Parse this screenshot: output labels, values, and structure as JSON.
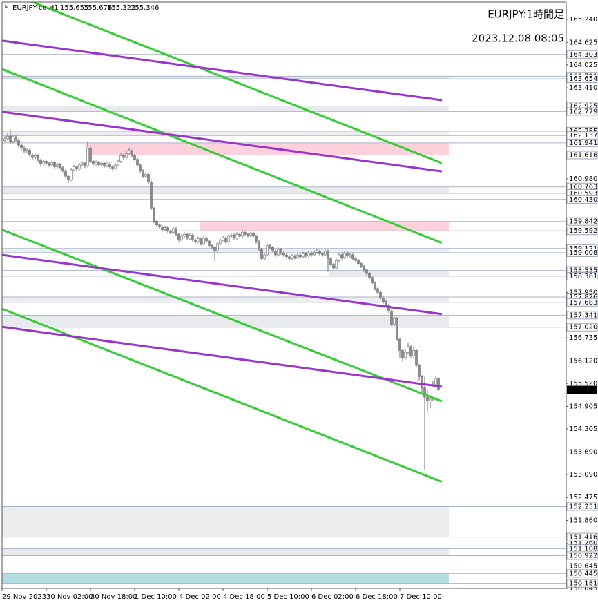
{
  "chart_data": {
    "type": "candlestick",
    "symbol": "EURJPY-cd,H1",
    "title": "EURJPY:1時間足",
    "timestamp": "2023.12.08 08:05",
    "ylim": [
      150.045,
      165.7
    ],
    "yticks": [
      {
        "value": 165.24,
        "label": "165.240"
      },
      164.625,
      164.025,
      {
        "value": 163.41,
        "label": "163.410"
      },
      {
        "value": 160.98,
        "label": "160.980"
      },
      {
        "value": 157.95,
        "label": "157.950"
      },
      156.735,
      {
        "value": 156.12,
        "label": "156.120"
      },
      {
        "value": 155.52,
        "label": "155.520"
      },
      154.905,
      154.305,
      {
        "value": 153.69,
        "label": "153.690"
      },
      {
        "value": 153.09,
        "label": "153.090"
      },
      152.475,
      {
        "value": 151.86,
        "label": "151.860"
      },
      {
        "value": 151.26,
        "label": "151.260"
      },
      150.645,
      150.045
    ],
    "grid": false,
    "up_color": "#ffffff",
    "down_color": "#8a8a8a",
    "wick_color": "#6e6e6e",
    "price_box_color": "#000000",
    "categories": [
      "29 Nov 2023",
      null,
      null,
      null,
      null,
      null,
      null,
      null,
      null,
      null,
      null,
      null,
      null,
      null,
      null,
      null,
      "30 Nov 02:00",
      null,
      null,
      null,
      null,
      null,
      null,
      null,
      null,
      null,
      null,
      null,
      null,
      null,
      null,
      null,
      "30 Nov 18:00",
      null,
      null,
      null,
      null,
      null,
      null,
      null,
      null,
      null,
      null,
      null,
      null,
      null,
      null,
      null,
      "1 Dec 10:00",
      null,
      null,
      null,
      null,
      null,
      null,
      null,
      null,
      null,
      null,
      null,
      null,
      null,
      null,
      null,
      "4 Dec 02:00",
      null,
      null,
      null,
      null,
      null,
      null,
      null,
      null,
      null,
      null,
      null,
      null,
      null,
      null,
      null,
      "4 Dec 18:00",
      null,
      null,
      null,
      null,
      null,
      null,
      null,
      null,
      null,
      null,
      null,
      null,
      null,
      null,
      null,
      "5 Dec 10:00",
      null,
      null,
      null,
      null,
      null,
      null,
      null,
      null,
      null,
      null,
      null,
      null,
      null,
      null,
      null,
      "6 Dec 02:00",
      null,
      null,
      null,
      null,
      null,
      null,
      null,
      null,
      null,
      null,
      null,
      null,
      null,
      null,
      null,
      "6 Dec 18:00",
      null,
      null,
      null,
      null,
      null,
      null,
      null,
      null,
      null,
      null,
      null,
      null,
      null,
      null,
      null,
      "7 Dec 10:00",
      null,
      null,
      null,
      null,
      null,
      null,
      null,
      null,
      null,
      null,
      null,
      null,
      null
    ],
    "candles": {
      "open": [
        162.0,
        162.05,
        162.12,
        161.98,
        162.1,
        162.02,
        161.88,
        161.8,
        161.72,
        161.75,
        161.62,
        161.55,
        161.6,
        161.48,
        161.38,
        161.45,
        161.4,
        161.35,
        161.42,
        161.3,
        161.36,
        161.28,
        161.2,
        161.05,
        160.95,
        161.22,
        161.3,
        161.25,
        161.35,
        161.4,
        161.32,
        161.8,
        161.45,
        161.38,
        161.42,
        161.36,
        161.4,
        161.33,
        161.38,
        161.3,
        161.25,
        161.35,
        161.45,
        161.6,
        161.55,
        161.65,
        161.72,
        161.6,
        161.5,
        161.35,
        161.2,
        161.05,
        161.1,
        160.9,
        160.2,
        159.85,
        159.75,
        159.7,
        159.62,
        159.68,
        159.58,
        159.55,
        159.65,
        159.5,
        159.35,
        159.45,
        159.5,
        159.4,
        159.48,
        159.35,
        159.3,
        159.38,
        159.25,
        159.4,
        159.32,
        159.2,
        159.15,
        159.05,
        159.25,
        159.35,
        159.4,
        159.3,
        159.45,
        159.48,
        159.4,
        159.5,
        159.45,
        159.55,
        159.5,
        159.47,
        159.52,
        159.45,
        159.3,
        159.1,
        158.85,
        158.95,
        159.2,
        159.15,
        159.05,
        158.95,
        159.1,
        159.0,
        158.95,
        158.9,
        158.85,
        158.92,
        158.88,
        158.95,
        158.9,
        158.98,
        158.93,
        159.0,
        158.95,
        159.02,
        159.05,
        158.98,
        158.95,
        159.05,
        158.85,
        158.7,
        158.6,
        158.8,
        158.95,
        158.88,
        159.0,
        158.92,
        158.95,
        158.85,
        158.8,
        158.72,
        158.65,
        158.55,
        158.45,
        158.35,
        158.2,
        158.05,
        157.95,
        157.8,
        157.7,
        157.6,
        157.45,
        157.1,
        157.25,
        156.7,
        156.4,
        156.2,
        156.35,
        156.5,
        156.25,
        156.4,
        156.0,
        155.7,
        155.4,
        155.15,
        155.05,
        155.1,
        155.5,
        155.655
      ],
      "high": [
        162.12,
        162.2,
        162.29,
        162.16,
        162.15,
        162.06,
        161.93,
        161.85,
        161.8,
        161.79,
        161.66,
        161.65,
        161.64,
        161.52,
        161.5,
        161.49,
        161.44,
        161.47,
        161.46,
        161.41,
        161.4,
        161.32,
        161.24,
        161.09,
        161.27,
        161.35,
        161.34,
        161.4,
        161.45,
        161.44,
        161.98,
        161.84,
        161.49,
        161.47,
        161.46,
        161.45,
        161.44,
        161.43,
        161.42,
        161.34,
        161.4,
        161.5,
        161.66,
        161.65,
        161.72,
        161.8,
        161.76,
        161.64,
        161.54,
        161.39,
        161.24,
        161.15,
        161.14,
        160.94,
        160.24,
        159.89,
        159.79,
        159.74,
        159.73,
        159.72,
        159.62,
        159.7,
        159.69,
        159.54,
        159.5,
        159.55,
        159.54,
        159.53,
        159.52,
        159.39,
        159.43,
        159.42,
        159.45,
        159.44,
        159.36,
        159.24,
        159.19,
        159.3,
        159.4,
        159.45,
        159.44,
        159.5,
        159.53,
        159.52,
        159.55,
        159.54,
        159.62,
        159.59,
        159.54,
        159.57,
        159.56,
        159.49,
        159.34,
        159.14,
        159.0,
        159.25,
        159.24,
        159.19,
        159.09,
        159.15,
        159.14,
        159.04,
        158.99,
        158.94,
        158.97,
        158.96,
        159.0,
        158.99,
        159.03,
        159.02,
        159.05,
        159.04,
        159.07,
        159.1,
        159.09,
        159.02,
        159.1,
        159.09,
        158.89,
        158.74,
        158.85,
        159.0,
        158.99,
        159.05,
        159.04,
        159.0,
        158.99,
        158.89,
        158.84,
        158.76,
        158.69,
        158.59,
        158.49,
        158.39,
        158.24,
        158.09,
        157.99,
        157.84,
        157.74,
        157.64,
        157.49,
        157.3,
        157.29,
        156.74,
        156.44,
        156.45,
        156.6,
        156.54,
        156.5,
        156.44,
        156.04,
        155.74,
        155.7,
        155.35,
        155.2,
        155.6,
        155.72,
        155.676
      ],
      "low": [
        161.95,
        162.0,
        161.92,
        161.93,
        161.96,
        161.82,
        161.74,
        161.66,
        161.67,
        161.57,
        161.49,
        161.5,
        161.43,
        161.32,
        161.34,
        161.35,
        161.3,
        161.31,
        161.25,
        161.26,
        161.23,
        161.15,
        161.0,
        160.87,
        160.92,
        161.18,
        161.2,
        161.21,
        161.31,
        161.27,
        161.28,
        161.4,
        161.33,
        161.34,
        161.31,
        161.32,
        161.28,
        161.29,
        161.25,
        161.2,
        161.21,
        161.31,
        161.41,
        161.5,
        161.51,
        161.61,
        161.55,
        161.45,
        161.3,
        161.15,
        161.0,
        161.01,
        160.85,
        160.15,
        159.8,
        159.7,
        159.65,
        159.57,
        159.58,
        159.53,
        159.5,
        159.51,
        159.45,
        159.3,
        159.31,
        159.41,
        159.35,
        159.36,
        159.3,
        159.25,
        159.26,
        159.2,
        159.21,
        159.27,
        159.15,
        159.1,
        158.79,
        159.01,
        159.21,
        159.31,
        159.25,
        159.26,
        159.41,
        159.35,
        159.36,
        159.4,
        159.41,
        159.45,
        159.42,
        159.43,
        159.4,
        159.25,
        159.05,
        158.8,
        158.81,
        158.91,
        159.1,
        159.0,
        158.9,
        158.91,
        158.95,
        158.9,
        158.85,
        158.8,
        158.81,
        158.83,
        158.84,
        158.85,
        158.86,
        158.88,
        158.89,
        158.9,
        158.91,
        158.98,
        158.93,
        158.9,
        158.91,
        158.5,
        158.65,
        158.55,
        158.56,
        158.76,
        158.83,
        158.84,
        158.87,
        158.88,
        158.8,
        158.75,
        158.67,
        158.6,
        158.5,
        158.4,
        158.3,
        158.15,
        158.0,
        157.9,
        157.75,
        157.65,
        157.55,
        157.4,
        157.05,
        157.06,
        156.65,
        156.2,
        156.1,
        156.15,
        156.31,
        156.2,
        156.21,
        155.95,
        155.6,
        155.3,
        153.22,
        154.75,
        154.85,
        155.05,
        155.45,
        155.323
      ],
      "close": [
        162.05,
        162.12,
        161.98,
        162.1,
        162.02,
        161.88,
        161.8,
        161.72,
        161.75,
        161.62,
        161.55,
        161.6,
        161.48,
        161.38,
        161.45,
        161.4,
        161.35,
        161.42,
        161.3,
        161.36,
        161.28,
        161.2,
        161.05,
        160.95,
        161.22,
        161.3,
        161.25,
        161.35,
        161.4,
        161.32,
        161.8,
        161.45,
        161.38,
        161.42,
        161.36,
        161.4,
        161.33,
        161.38,
        161.3,
        161.25,
        161.35,
        161.45,
        161.6,
        161.55,
        161.65,
        161.72,
        161.6,
        161.5,
        161.35,
        161.2,
        161.05,
        161.1,
        160.9,
        160.2,
        159.85,
        159.75,
        159.7,
        159.62,
        159.68,
        159.58,
        159.55,
        159.65,
        159.5,
        159.35,
        159.45,
        159.5,
        159.4,
        159.48,
        159.35,
        159.3,
        159.38,
        159.25,
        159.4,
        159.32,
        159.2,
        159.15,
        159.05,
        159.25,
        159.35,
        159.4,
        159.3,
        159.45,
        159.48,
        159.4,
        159.5,
        159.45,
        159.55,
        159.5,
        159.47,
        159.52,
        159.45,
        159.3,
        159.1,
        158.85,
        158.95,
        159.2,
        159.15,
        159.05,
        158.95,
        159.1,
        159.0,
        158.95,
        158.9,
        158.85,
        158.92,
        158.88,
        158.95,
        158.9,
        158.98,
        158.93,
        159.0,
        158.95,
        159.02,
        159.05,
        158.98,
        158.95,
        159.05,
        158.85,
        158.7,
        158.6,
        158.8,
        158.95,
        158.88,
        159.0,
        158.92,
        158.95,
        158.85,
        158.8,
        158.72,
        158.65,
        158.55,
        158.45,
        158.35,
        158.2,
        158.05,
        157.95,
        157.8,
        157.7,
        157.6,
        157.45,
        157.1,
        157.25,
        156.7,
        156.4,
        156.2,
        156.35,
        156.5,
        156.25,
        156.4,
        156.0,
        155.7,
        155.4,
        155.15,
        155.05,
        155.1,
        155.5,
        155.655,
        155.346
      ]
    },
    "zones": [
      {
        "top": 163.721,
        "bottom": 163.654,
        "color": "#e4e7eb"
      },
      {
        "top": 162.925,
        "bottom": 162.779,
        "color": "#e8eaed"
      },
      {
        "top": 162.255,
        "bottom": 162.137,
        "color": "#eceef1"
      },
      {
        "top": 161.941,
        "bottom": 161.616,
        "color": "#ffd1dc",
        "from": 30
      },
      {
        "top": 160.763,
        "bottom": 160.593,
        "color": "#e8eaed"
      },
      {
        "top": 159.842,
        "bottom": 159.592,
        "color": "#ffd1dc",
        "from": 71
      },
      {
        "top": 159.121,
        "bottom": 159.008,
        "color": "#eceef1"
      },
      {
        "top": 158.535,
        "bottom": 158.381,
        "color": "#e8eaed",
        "from": 118
      },
      {
        "top": 157.826,
        "bottom": 157.683,
        "color": "#eceef1"
      },
      {
        "top": 157.341,
        "bottom": {
          "value": 157.02,
          "label": "157.020"
        },
        "color": "#e8eaed"
      },
      {
        "top": 152.231,
        "bottom": 151.416,
        "color": "#ececec"
      },
      {
        "top": 151.108,
        "bottom": 150.922,
        "color": "#e6e8eb"
      },
      {
        "top": 150.445,
        "bottom": 150.181,
        "color": "#b3dfe3"
      }
    ],
    "levels": [
      164.303,
      {
        "value": 160.43,
        "label": "160.430"
      }
    ],
    "trendlines": [
      {
        "color": "#33cc33",
        "prices": [
          166.02,
          161.4
        ]
      },
      {
        "color": "#9933cc",
        "prices": [
          164.67,
          163.08
        ]
      },
      {
        "color": "#33cc33",
        "prices": [
          163.91,
          159.27
        ]
      },
      {
        "color": "#9933cc",
        "prices": [
          162.77,
          161.18
        ]
      },
      {
        "color": "#33cc33",
        "prices": [
          159.62,
          155.04
        ]
      },
      {
        "color": "#9933cc",
        "prices": [
          158.95,
          157.37
        ]
      },
      {
        "color": "#33cc33",
        "prices": [
          157.51,
          152.89
        ]
      },
      {
        "color": "#9933cc",
        "prices": [
          157.03,
          155.43
        ]
      }
    ]
  }
}
